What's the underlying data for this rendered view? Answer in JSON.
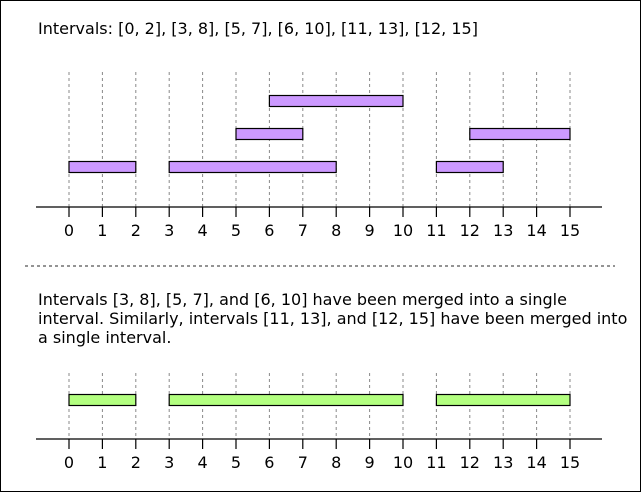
{
  "top": {
    "caption": "Intervals: [0, 2], [3, 8], [5, 7], [6, 10], [11, 13], [12, 15]",
    "intervals": [
      {
        "start": 0,
        "end": 2,
        "level": 0
      },
      {
        "start": 3,
        "end": 8,
        "level": 0
      },
      {
        "start": 11,
        "end": 13,
        "level": 0
      },
      {
        "start": 5,
        "end": 7,
        "level": 1
      },
      {
        "start": 12,
        "end": 15,
        "level": 1
      },
      {
        "start": 6,
        "end": 10,
        "level": 2
      }
    ],
    "color": "#cc99ff"
  },
  "bottom": {
    "caption": "Intervals [3, 8], [5, 7], and [6, 10] have been merged into a single interval. Similarly, intervals [11, 13], and [12, 15] have been merged into a single interval.",
    "intervals": [
      {
        "start": 0,
        "end": 2,
        "level": 0
      },
      {
        "start": 3,
        "end": 10,
        "level": 0
      },
      {
        "start": 11,
        "end": 15,
        "level": 0
      }
    ],
    "color": "#b3ff80"
  },
  "axis": {
    "ticks": [
      "0",
      "1",
      "2",
      "3",
      "4",
      "5",
      "6",
      "7",
      "8",
      "9",
      "10",
      "11",
      "12",
      "13",
      "14",
      "15"
    ]
  },
  "colors": {
    "stroke": "#000000",
    "separator": "#555555",
    "guide": "#888888"
  }
}
